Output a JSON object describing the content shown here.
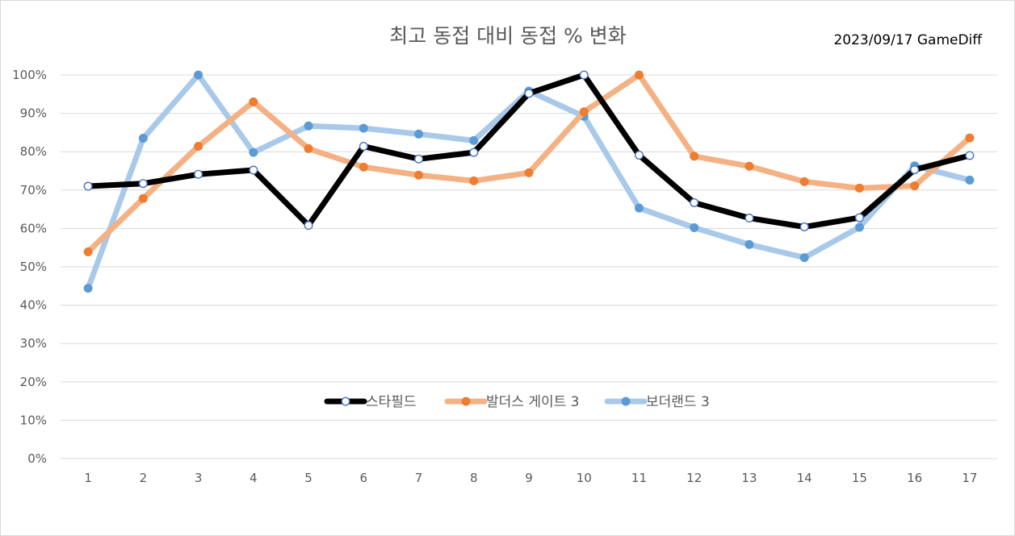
{
  "chart_data": {
    "type": "line",
    "title": "최고 동접 대비 동접 % 변화",
    "annotation": "2023/09/17 GameDiff",
    "xlabel": "",
    "ylabel": "",
    "categories": [
      "1",
      "2",
      "3",
      "4",
      "5",
      "6",
      "7",
      "8",
      "9",
      "10",
      "11",
      "12",
      "13",
      "14",
      "15",
      "16",
      "17"
    ],
    "ylim": [
      0,
      100
    ],
    "yticks": [
      "0%",
      "10%",
      "20%",
      "30%",
      "40%",
      "50%",
      "60%",
      "70%",
      "80%",
      "90%",
      "100%"
    ],
    "grid": true,
    "legend_position": "center",
    "series": [
      {
        "name": "스타필드",
        "color": "#000000",
        "marker_fill": "#ffffff",
        "marker_stroke": "#4472c4",
        "values": [
          71,
          71.7,
          74.1,
          75.2,
          60.8,
          81.4,
          78.1,
          79.8,
          95.2,
          100,
          79.1,
          66.7,
          62.7,
          60.4,
          62.8,
          75.3,
          79
        ]
      },
      {
        "name": "발더스 게이트 3",
        "color": "#f4b183",
        "marker_fill": "#ed7d31",
        "marker_stroke": "#ed7d31",
        "values": [
          53.9,
          67.8,
          81.4,
          93,
          80.8,
          76,
          73.9,
          72.4,
          74.5,
          90.4,
          100,
          78.8,
          76.2,
          72.2,
          70.5,
          71.1,
          83.6
        ]
      },
      {
        "name": "보더랜드 3",
        "color": "#a9c9ea",
        "marker_fill": "#5b9bd5",
        "marker_stroke": "#5b9bd5",
        "values": [
          44.4,
          83.5,
          100,
          79.8,
          86.7,
          86.1,
          84.6,
          82.9,
          95.8,
          89.2,
          65.3,
          60.2,
          55.8,
          52.4,
          60.3,
          76.3,
          72.6
        ]
      }
    ]
  }
}
